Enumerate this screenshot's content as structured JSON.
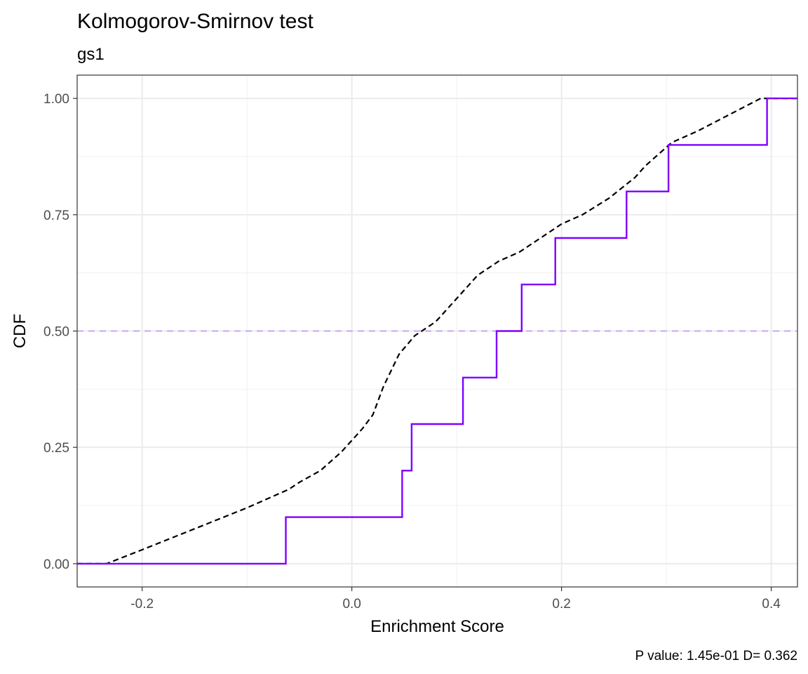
{
  "chart_data": {
    "type": "line",
    "title": "Kolmogorov-Smirnov test",
    "subtitle": "gs1",
    "xlabel": "Enrichment Score",
    "ylabel": "CDF",
    "caption": "P value: 1.45e-01 D= 0.362",
    "xlim": [
      -0.262,
      0.425
    ],
    "ylim": [
      -0.05,
      1.05
    ],
    "x_ticks": [
      {
        "value": -0.2,
        "label": "-0.2"
      },
      {
        "value": 0.0,
        "label": "0.0"
      },
      {
        "value": 0.2,
        "label": "0.2"
      },
      {
        "value": 0.4,
        "label": "0.4"
      }
    ],
    "y_ticks": [
      {
        "value": 0.0,
        "label": "0.00"
      },
      {
        "value": 0.25,
        "label": "0.25"
      },
      {
        "value": 0.5,
        "label": "0.50"
      },
      {
        "value": 0.75,
        "label": "0.75"
      },
      {
        "value": 1.0,
        "label": "1.00"
      }
    ],
    "grid": true,
    "hline": {
      "y": 0.5,
      "color": "#c9a4f7",
      "style": "dashed"
    },
    "series": [
      {
        "style": "step",
        "color": "#7f00ff",
        "steps": [
          {
            "x": -0.262,
            "y": 0.0
          },
          {
            "x": -0.063,
            "y": 0.1
          },
          {
            "x": 0.048,
            "y": 0.2
          },
          {
            "x": 0.057,
            "y": 0.3
          },
          {
            "x": 0.106,
            "y": 0.4
          },
          {
            "x": 0.138,
            "y": 0.5
          },
          {
            "x": 0.162,
            "y": 0.6
          },
          {
            "x": 0.194,
            "y": 0.7
          },
          {
            "x": 0.262,
            "y": 0.8
          },
          {
            "x": 0.302,
            "y": 0.9
          },
          {
            "x": 0.396,
            "y": 1.0
          },
          {
            "x": 0.425,
            "y": 1.0
          }
        ]
      },
      {
        "style": "dashed",
        "color": "#000000",
        "points": [
          {
            "x": -0.262,
            "y": 0.0
          },
          {
            "x": -0.234,
            "y": 0.0
          },
          {
            "x": -0.2,
            "y": 0.03
          },
          {
            "x": -0.15,
            "y": 0.075
          },
          {
            "x": -0.1,
            "y": 0.12
          },
          {
            "x": -0.06,
            "y": 0.16
          },
          {
            "x": -0.05,
            "y": 0.175
          },
          {
            "x": -0.03,
            "y": 0.2
          },
          {
            "x": -0.01,
            "y": 0.24
          },
          {
            "x": 0.01,
            "y": 0.29
          },
          {
            "x": 0.02,
            "y": 0.32
          },
          {
            "x": 0.03,
            "y": 0.38
          },
          {
            "x": 0.045,
            "y": 0.45
          },
          {
            "x": 0.06,
            "y": 0.49
          },
          {
            "x": 0.08,
            "y": 0.52
          },
          {
            "x": 0.1,
            "y": 0.57
          },
          {
            "x": 0.12,
            "y": 0.62
          },
          {
            "x": 0.14,
            "y": 0.65
          },
          {
            "x": 0.16,
            "y": 0.67
          },
          {
            "x": 0.18,
            "y": 0.7
          },
          {
            "x": 0.2,
            "y": 0.73
          },
          {
            "x": 0.22,
            "y": 0.75
          },
          {
            "x": 0.245,
            "y": 0.785
          },
          {
            "x": 0.27,
            "y": 0.83
          },
          {
            "x": 0.28,
            "y": 0.855
          },
          {
            "x": 0.305,
            "y": 0.905
          },
          {
            "x": 0.33,
            "y": 0.93
          },
          {
            "x": 0.36,
            "y": 0.965
          },
          {
            "x": 0.39,
            "y": 1.0
          },
          {
            "x": 0.425,
            "y": 1.0
          }
        ]
      }
    ]
  }
}
